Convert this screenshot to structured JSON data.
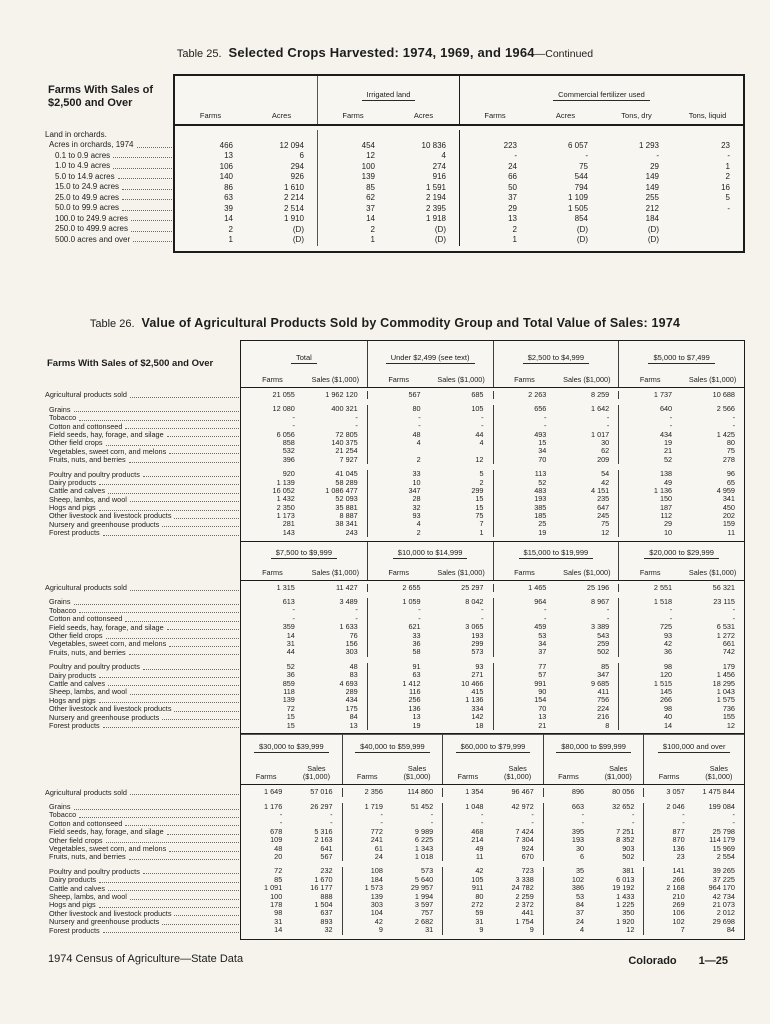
{
  "page": {
    "footer_left": "1974 Census of Agriculture—State Data",
    "footer_state": "Colorado",
    "footer_page": "1—25"
  },
  "table25": {
    "title_no": "Table 25.",
    "title_main": "Selected Crops Harvested:  1974, 1969, and 1964",
    "title_cont": "—Continued",
    "stub_header": "Farms With Sales of $2,500 and Over",
    "groups": [
      {
        "label": "",
        "span": 2
      },
      {
        "label": "Irrigated land",
        "span": 2
      },
      {
        "label": "Commercial fertilizer used",
        "span": 4
      }
    ],
    "col_headers": [
      "Farms",
      "Acres",
      "Farms",
      "Acres",
      "Farms",
      "Acres",
      "Tons, dry",
      "Tons, liquid"
    ],
    "rows": [
      {
        "label": "Land in orchards.",
        "indent": 0,
        "leaders": false,
        "values": null
      },
      {
        "label": "Acres in orchards, 1974",
        "indent": 1,
        "leaders": true,
        "values": [
          "466",
          "12 094",
          "454",
          "10 836",
          "223",
          "6 057",
          "1 293",
          "23"
        ]
      },
      {
        "label": "0.1 to 0.9 acres",
        "indent": 2,
        "leaders": true,
        "values": [
          "13",
          "6",
          "12",
          "4",
          "-",
          "-",
          "-",
          "-"
        ]
      },
      {
        "label": "1.0 to 4.9 acres",
        "indent": 2,
        "leaders": true,
        "values": [
          "106",
          "294",
          "100",
          "274",
          "24",
          "75",
          "29",
          "1"
        ]
      },
      {
        "label": "5.0 to 14.9 acres",
        "indent": 2,
        "leaders": true,
        "values": [
          "140",
          "926",
          "139",
          "916",
          "66",
          "544",
          "149",
          "2"
        ]
      },
      {
        "label": "15.0 to 24.9 acres",
        "indent": 2,
        "leaders": true,
        "values": [
          "86",
          "1 610",
          "85",
          "1 591",
          "50",
          "794",
          "149",
          "16"
        ]
      },
      {
        "label": "25.0 to 49.9 acres",
        "indent": 2,
        "leaders": true,
        "values": [
          "63",
          "2 214",
          "62",
          "2 194",
          "37",
          "1 109",
          "255",
          "5"
        ]
      },
      {
        "label": "50.0 to 99.9 acres",
        "indent": 2,
        "leaders": true,
        "values": [
          "39",
          "2 514",
          "37",
          "2 395",
          "29",
          "1 505",
          "212",
          "-"
        ]
      },
      {
        "label": "100.0 to 249.9 acres",
        "indent": 2,
        "leaders": true,
        "values": [
          "14",
          "1 910",
          "14",
          "1 918",
          "13",
          "854",
          "184",
          ""
        ]
      },
      {
        "label": "250.0 to 499.9 acres",
        "indent": 2,
        "leaders": true,
        "values": [
          "2",
          "(D)",
          "2",
          "(D)",
          "2",
          "(D)",
          "(D)",
          ""
        ]
      },
      {
        "label": "500.0 acres and over",
        "indent": 2,
        "leaders": true,
        "values": [
          "1",
          "(D)",
          "1",
          "(D)",
          "1",
          "(D)",
          "(D)",
          ""
        ]
      }
    ]
  },
  "table26": {
    "title_no": "Table 26.",
    "title_main": "Value of Agricultural Products Sold by Commodity Group and Total Value of Sales:  1974",
    "stub_header": "Farms With Sales of $2,500 and Over",
    "sub_headers": [
      "Farms",
      "Sales ($1,000)"
    ],
    "sub_headers_stacked": [
      "Farms",
      "Sales\n($1,000)"
    ],
    "row_labels": [
      "Agricultural products sold",
      "Grains",
      "Tobacco",
      "Cotton and cottonseed",
      "Field seeds, hay, forage, and silage",
      "Other field crops",
      "Vegetables, sweet corn, and melons",
      "Fruits, nuts, and berries",
      "Poultry and poultry products",
      "Dairy products",
      "Cattle and calves",
      "Sheep, lambs, and wool",
      "Hogs and pigs",
      "Other livestock and livestock products",
      "Nursery and greenhouse products",
      "Forest products"
    ],
    "bands": [
      {
        "groups": [
          "Total",
          "Under $2,499 (see text)",
          "$2,500 to $4,999",
          "$5,000 to $7,499"
        ],
        "stacked": false,
        "rows": [
          [
            "21 055",
            "1 962 120",
            "567",
            "685",
            "2 263",
            "8 259",
            "1 737",
            "10 688"
          ],
          [
            "12 080",
            "400 321",
            "80",
            "105",
            "656",
            "1 642",
            "640",
            "2 566"
          ],
          [
            "-",
            "-",
            "-",
            "-",
            "-",
            "-",
            "-",
            "-"
          ],
          [
            "-",
            "-",
            "-",
            "-",
            "-",
            "-",
            "-",
            "-"
          ],
          [
            "6 056",
            "72 805",
            "48",
            "44",
            "493",
            "1 017",
            "434",
            "1 425"
          ],
          [
            "858",
            "140 375",
            "4",
            "4",
            "15",
            "30",
            "19",
            "80"
          ],
          [
            "532",
            "21 254",
            "",
            "",
            "34",
            "62",
            "21",
            "75"
          ],
          [
            "396",
            "7 927",
            "2",
            "12",
            "70",
            "209",
            "52",
            "278"
          ],
          [
            "920",
            "41 045",
            "33",
            "5",
            "113",
            "54",
            "138",
            "96"
          ],
          [
            "1 139",
            "58 289",
            "10",
            "2",
            "52",
            "42",
            "49",
            "65"
          ],
          [
            "16 052",
            "1 086 477",
            "347",
            "299",
            "483",
            "4 151",
            "1 136",
            "4 959"
          ],
          [
            "1 432",
            "52 093",
            "28",
            "15",
            "193",
            "235",
            "150",
            "341"
          ],
          [
            "2 350",
            "35 881",
            "32",
            "15",
            "385",
            "647",
            "187",
            "450"
          ],
          [
            "1 173",
            "8 887",
            "93",
            "75",
            "185",
            "245",
            "112",
            "202"
          ],
          [
            "281",
            "38 341",
            "4",
            "7",
            "25",
            "75",
            "29",
            "159"
          ],
          [
            "143",
            "243",
            "2",
            "1",
            "19",
            "12",
            "10",
            "11"
          ]
        ]
      },
      {
        "groups": [
          "$7,500 to $9,999",
          "$10,000 to $14,999",
          "$15,000 to $19,999",
          "$20,000 to $29,999"
        ],
        "stacked": false,
        "rows": [
          [
            "1 315",
            "11 427",
            "2 655",
            "25 297",
            "1 465",
            "25 196",
            "2 551",
            "56 321"
          ],
          [
            "613",
            "3 489",
            "1 059",
            "8 042",
            "964",
            "8 967",
            "1 518",
            "23 115"
          ],
          [
            "-",
            "-",
            "-",
            "-",
            "-",
            "-",
            "-",
            "-"
          ],
          [
            "-",
            "-",
            "-",
            "-",
            "-",
            "-",
            "-",
            "-"
          ],
          [
            "359",
            "1 633",
            "621",
            "3 065",
            "459",
            "3 389",
            "725",
            "6 531"
          ],
          [
            "14",
            "76",
            "33",
            "193",
            "53",
            "543",
            "93",
            "1 272"
          ],
          [
            "31",
            "156",
            "36",
            "299",
            "34",
            "259",
            "42",
            "661"
          ],
          [
            "44",
            "303",
            "58",
            "573",
            "37",
            "502",
            "36",
            "742"
          ],
          [
            "52",
            "48",
            "91",
            "93",
            "77",
            "85",
            "98",
            "179"
          ],
          [
            "36",
            "83",
            "63",
            "271",
            "57",
            "347",
            "120",
            "1 456"
          ],
          [
            "859",
            "4 693",
            "1 412",
            "10 466",
            "991",
            "9 685",
            "1 515",
            "18 295"
          ],
          [
            "118",
            "289",
            "116",
            "415",
            "90",
            "411",
            "145",
            "1 043"
          ],
          [
            "139",
            "434",
            "256",
            "1 136",
            "154",
            "756",
            "266",
            "1 575"
          ],
          [
            "72",
            "175",
            "136",
            "334",
            "70",
            "224",
            "98",
            "736"
          ],
          [
            "15",
            "84",
            "13",
            "142",
            "13",
            "216",
            "40",
            "155"
          ],
          [
            "15",
            "13",
            "19",
            "18",
            "21",
            "8",
            "14",
            "12"
          ]
        ]
      },
      {
        "groups": [
          "$30,000 to $39,999",
          "$40,000 to $59,999",
          "$60,000 to $79,999",
          "$80,000 to $99,999",
          "$100,000 and over"
        ],
        "stacked": true,
        "rows": [
          [
            "1 649",
            "57 016",
            "2 356",
            "114 860",
            "1 354",
            "96 467",
            "896",
            "80 056",
            "3 057",
            "1 475 844"
          ],
          [
            "1 176",
            "26 297",
            "1 719",
            "51 452",
            "1 048",
            "42 972",
            "663",
            "32 652",
            "2 046",
            "199 084"
          ],
          [
            "-",
            "-",
            "-",
            "-",
            "-",
            "-",
            "-",
            "-",
            "-",
            "-"
          ],
          [
            "-",
            "-",
            "-",
            "-",
            "-",
            "-",
            "-",
            "-",
            "-",
            "-"
          ],
          [
            "678",
            "5 316",
            "772",
            "9 989",
            "468",
            "7 424",
            "395",
            "7 251",
            "877",
            "25 798"
          ],
          [
            "109",
            "2 163",
            "241",
            "6 225",
            "214",
            "7 304",
            "193",
            "8 352",
            "870",
            "114 179"
          ],
          [
            "48",
            "641",
            "61",
            "1 343",
            "49",
            "924",
            "30",
            "903",
            "136",
            "15 969"
          ],
          [
            "20",
            "567",
            "24",
            "1 018",
            "11",
            "670",
            "6",
            "502",
            "23",
            "2 554"
          ],
          [
            "72",
            "232",
            "108",
            "573",
            "42",
            "723",
            "35",
            "381",
            "141",
            "39 265"
          ],
          [
            "85",
            "1 670",
            "184",
            "5 640",
            "105",
            "3 338",
            "102",
            "6 013",
            "266",
            "37 225"
          ],
          [
            "1 091",
            "16 177",
            "1 573",
            "29 957",
            "911",
            "24 782",
            "386",
            "19 192",
            "2 168",
            "964 170"
          ],
          [
            "100",
            "888",
            "139",
            "1 994",
            "80",
            "2 259",
            "53",
            "1 433",
            "210",
            "42 734"
          ],
          [
            "178",
            "1 504",
            "303",
            "3 597",
            "272",
            "2 372",
            "84",
            "1 225",
            "269",
            "21 073"
          ],
          [
            "98",
            "637",
            "104",
            "757",
            "59",
            "441",
            "37",
            "350",
            "106",
            "2 012"
          ],
          [
            "31",
            "893",
            "42",
            "2 682",
            "31",
            "1 754",
            "24",
            "1 920",
            "102",
            "29 698"
          ],
          [
            "14",
            "32",
            "9",
            "31",
            "9",
            "9",
            "4",
            "12",
            "7",
            "84"
          ]
        ]
      }
    ]
  }
}
